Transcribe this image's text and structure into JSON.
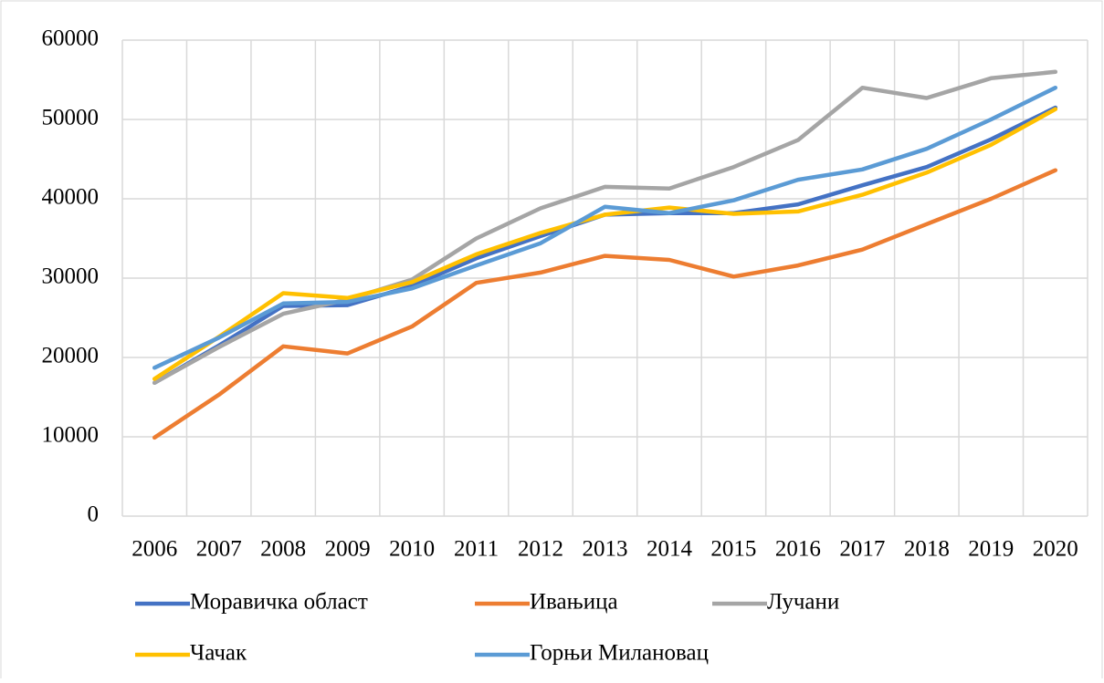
{
  "chart_data": {
    "type": "line",
    "categories": [
      "2006",
      "2007",
      "2008",
      "2009",
      "2010",
      "2011",
      "2012",
      "2013",
      "2014",
      "2015",
      "2016",
      "2017",
      "2018",
      "2019",
      "2020"
    ],
    "series": [
      {
        "name": "Моравичка област",
        "color": "#4472c4",
        "values": [
          16800,
          21500,
          26500,
          26600,
          29000,
          32500,
          35300,
          38000,
          38200,
          38200,
          39300,
          41700,
          44000,
          47500,
          51500
        ]
      },
      {
        "name": "Ивањица",
        "color": "#ed7d31",
        "values": [
          9900,
          15300,
          21400,
          20500,
          23900,
          29400,
          30700,
          32800,
          32300,
          30200,
          31600,
          33600,
          36800,
          40000,
          43600
        ]
      },
      {
        "name": "Лучани",
        "color": "#a5a5a5",
        "values": [
          16800,
          21300,
          25500,
          27300,
          29800,
          35000,
          38800,
          41500,
          41300,
          44000,
          47400,
          54000,
          52700,
          55200,
          56000
        ]
      },
      {
        "name": "Чачак",
        "color": "#ffc000",
        "values": [
          17300,
          22600,
          28100,
          27500,
          29500,
          33000,
          35700,
          38000,
          38900,
          38100,
          38400,
          40500,
          43300,
          46800,
          51300
        ]
      },
      {
        "name": "Горњи Милановац",
        "color": "#5b9bd5",
        "values": [
          18700,
          22500,
          26800,
          27000,
          28700,
          31600,
          34400,
          39000,
          38200,
          39800,
          42400,
          43700,
          46300,
          50000,
          54000
        ]
      }
    ],
    "ylim": [
      0,
      60000
    ],
    "yticks": [
      0,
      10000,
      20000,
      30000,
      40000,
      50000,
      60000
    ],
    "grid": true,
    "legend": "bottom"
  }
}
